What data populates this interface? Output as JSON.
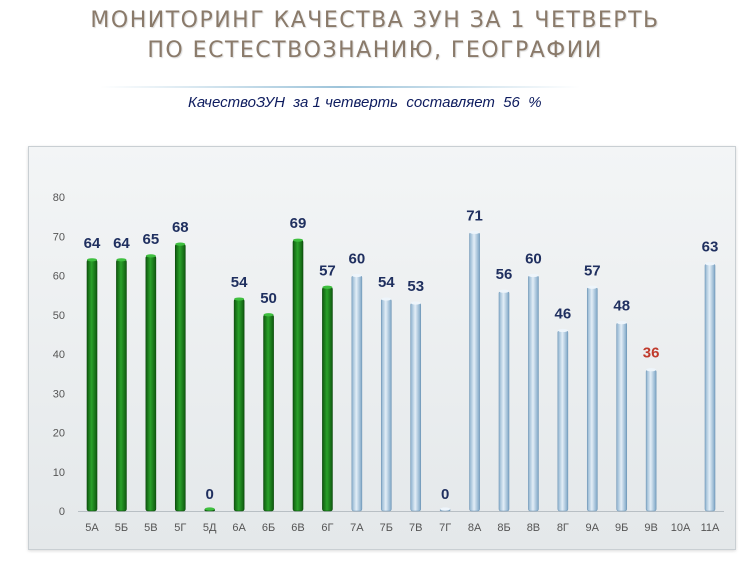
{
  "header": {
    "title_line1": "МОНИТОРИНГ  КАЧЕСТВА ЗУН ЗА 1  ЧЕТВЕРТЬ",
    "title_line2": "ПО  ЕСТЕСТВОЗНАНИЮ, ГЕОГРАФИИ",
    "subtitle": "КачествоЗУН  за 1 четверть  составляет  56  %"
  },
  "colors": {
    "green": "#1f8a1f",
    "green_dark": "#0f5a0f",
    "blue_light": "#cfe1ef",
    "blue_dark": "#7ea6c6",
    "label": "#1f2f5f",
    "label_highlight": "#c0392b"
  },
  "chart_data": {
    "type": "bar",
    "categories": [
      "5А",
      "5Б",
      "5В",
      "5Г",
      "5Д",
      "6А",
      "6Б",
      "6В",
      "6Г",
      "7А",
      "7Б",
      "7В",
      "7Г",
      "8А",
      "8Б",
      "8В",
      "8Г",
      "9А",
      "9Б",
      "9В",
      "10А",
      "11А"
    ],
    "values": [
      64,
      64,
      65,
      68,
      0,
      54,
      50,
      69,
      57,
      60,
      54,
      53,
      0,
      71,
      56,
      60,
      46,
      57,
      48,
      36,
      null,
      63
    ],
    "data_labels": [
      "64",
      "64",
      "65",
      "68",
      "0",
      "54",
      "50",
      "69",
      "57",
      "60",
      "54",
      "53",
      "0",
      "71",
      "56",
      "60",
      "46",
      "57",
      "48",
      "36",
      "",
      "63"
    ],
    "bar_colors": [
      "green",
      "green",
      "green",
      "green",
      "green",
      "green",
      "green",
      "green",
      "green",
      "blue",
      "blue",
      "blue",
      "blue",
      "blue",
      "blue",
      "blue",
      "blue",
      "blue",
      "blue",
      "blue",
      "blue",
      "blue"
    ],
    "highlight_index": 19,
    "ylim": [
      0,
      80
    ],
    "yticks": [
      "0",
      "10",
      "20",
      "30",
      "40",
      "50",
      "60",
      "70",
      "80"
    ],
    "grid": false,
    "legend": "none"
  }
}
